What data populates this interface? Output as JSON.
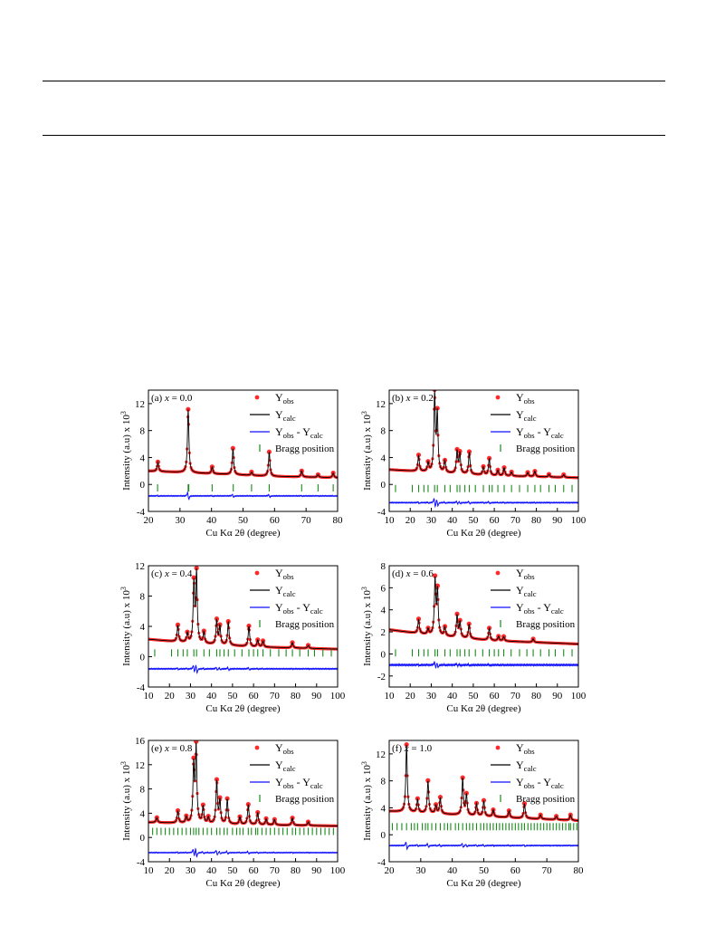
{
  "colors": {
    "obs": "#ff2a2a",
    "calc": "#000000",
    "diff": "#1010ff",
    "bragg": "#1a8a1a",
    "axis": "#000000"
  },
  "legend": {
    "obs": [
      "Y",
      "obs"
    ],
    "calc": [
      "Y",
      "calc"
    ],
    "diff": [
      "Y",
      "obs",
      " - Y",
      "calc"
    ],
    "bragg": "Bragg position"
  },
  "ylabel": [
    "Intensity (a.u) x 10",
    "3"
  ],
  "xlabel": "Cu Kα 2θ (degree)",
  "chart_data": [
    {
      "type": "line",
      "panel": "a",
      "label": [
        "(a) ",
        "x",
        " = 0.0"
      ],
      "xlim": [
        20,
        80
      ],
      "ylim": [
        -4,
        14
      ],
      "xticks": [
        20,
        30,
        40,
        50,
        60,
        70,
        80
      ],
      "yticks": [
        -4,
        0,
        4,
        8,
        12
      ],
      "background": [
        [
          20,
          2.0
        ],
        [
          40,
          1.6
        ],
        [
          60,
          1.2
        ],
        [
          80,
          1.0
        ]
      ],
      "peaks": [
        [
          23.0,
          1.4
        ],
        [
          32.6,
          9.4
        ],
        [
          40.2,
          1.0
        ],
        [
          46.8,
          3.9
        ],
        [
          52.7,
          0.5
        ],
        [
          58.3,
          3.6
        ],
        [
          68.6,
          0.9
        ],
        [
          73.8,
          0.4
        ],
        [
          78.6,
          0.7
        ]
      ],
      "bragg_y": -0.5,
      "bragg": [
        22.9,
        32.6,
        32.8,
        40.2,
        46.9,
        52.7,
        58.3,
        68.6,
        73.8,
        78.6
      ],
      "diff_y": -1.7
    },
    {
      "type": "line",
      "panel": "b",
      "label": [
        "(b) ",
        "x",
        " = 0.2"
      ],
      "xlim": [
        10,
        100
      ],
      "ylim": [
        -4,
        14
      ],
      "xticks": [
        10,
        20,
        30,
        40,
        50,
        60,
        70,
        80,
        90,
        100
      ],
      "yticks": [
        -4,
        0,
        4,
        8,
        12
      ],
      "background": [
        [
          10,
          2.2
        ],
        [
          30,
          1.8
        ],
        [
          60,
          1.3
        ],
        [
          100,
          1.0
        ]
      ],
      "peaks": [
        [
          24.0,
          2.4
        ],
        [
          28.5,
          1.3
        ],
        [
          31.6,
          11.5
        ],
        [
          32.9,
          8.5
        ],
        [
          36.5,
          1.7
        ],
        [
          42.3,
          3.3
        ],
        [
          43.6,
          3.0
        ],
        [
          48.1,
          3.3
        ],
        [
          54.8,
          1.2
        ],
        [
          57.6,
          2.5
        ],
        [
          61.7,
          0.8
        ],
        [
          64.7,
          1.2
        ],
        [
          68.2,
          0.6
        ],
        [
          75.9,
          0.6
        ],
        [
          79.3,
          0.8
        ],
        [
          86.0,
          0.4
        ],
        [
          93.0,
          0.4
        ]
      ],
      "bragg_y": -0.6,
      "bragg": [
        13,
        21,
        24,
        26.5,
        28.5,
        31.6,
        32.9,
        36.5,
        39,
        42.3,
        43.6,
        46,
        48.1,
        51,
        54.8,
        57.6,
        59,
        61.7,
        64.7,
        68.2,
        72,
        75.9,
        79.3,
        82,
        86,
        89,
        93,
        97
      ],
      "diff_y": -2.7
    },
    {
      "type": "line",
      "panel": "c",
      "label": [
        "(c) ",
        "x",
        " = 0.4"
      ],
      "xlim": [
        10,
        100
      ],
      "ylim": [
        -4,
        12
      ],
      "xticks": [
        10,
        20,
        30,
        40,
        50,
        60,
        70,
        80,
        90,
        100
      ],
      "yticks": [
        -4,
        0,
        4,
        8,
        12
      ],
      "background": [
        [
          10,
          2.3
        ],
        [
          30,
          1.8
        ],
        [
          60,
          1.3
        ],
        [
          100,
          1.0
        ]
      ],
      "peaks": [
        [
          24.0,
          2.2
        ],
        [
          28.5,
          1.2
        ],
        [
          31.6,
          7.8
        ],
        [
          32.9,
          9.2
        ],
        [
          36.4,
          1.5
        ],
        [
          42.5,
          3.2
        ],
        [
          44.0,
          2.4
        ],
        [
          48.0,
          3.1
        ],
        [
          57.8,
          2.7
        ],
        [
          62.0,
          0.9
        ],
        [
          64.5,
          0.8
        ],
        [
          78.5,
          0.7
        ],
        [
          86.0,
          0.4
        ]
      ],
      "bragg_y": 0.5,
      "bragg": [
        13,
        21,
        24,
        26.5,
        28.5,
        31.6,
        32.9,
        36.4,
        39,
        42.5,
        44,
        46,
        48,
        51,
        54.5,
        57.8,
        60,
        62,
        64.5,
        68,
        72,
        75.5,
        78.5,
        82,
        86,
        89,
        93,
        97
      ],
      "diff_y": -1.6
    },
    {
      "type": "line",
      "panel": "d",
      "label": [
        "(d) ",
        "x",
        " = 0.6"
      ],
      "xlim": [
        10,
        100
      ],
      "ylim": [
        -3,
        8
      ],
      "xticks": [
        10,
        20,
        30,
        40,
        50,
        60,
        70,
        80,
        90,
        100
      ],
      "yticks": [
        -2,
        0,
        2,
        4,
        6,
        8
      ],
      "background": [
        [
          10,
          2.2
        ],
        [
          30,
          1.7
        ],
        [
          60,
          1.2
        ],
        [
          100,
          0.9
        ]
      ],
      "peaks": [
        [
          24.0,
          1.3
        ],
        [
          28.5,
          0.5
        ],
        [
          31.8,
          5.0
        ],
        [
          33.0,
          4.0
        ],
        [
          36.5,
          0.8
        ],
        [
          42.3,
          2.0
        ],
        [
          43.7,
          1.4
        ],
        [
          48.0,
          1.3
        ],
        [
          57.6,
          1.1
        ],
        [
          62.0,
          0.4
        ],
        [
          64.5,
          0.4
        ],
        [
          78.5,
          0.3
        ]
      ],
      "bragg_y": 0.1,
      "bragg": [
        13,
        21,
        24,
        26.5,
        28.5,
        31.8,
        33,
        36.5,
        39,
        42.3,
        43.7,
        46,
        48,
        51,
        54.5,
        57.6,
        60,
        62,
        64.5,
        68,
        72,
        75.5,
        78.5,
        82,
        86,
        89,
        93,
        97
      ],
      "diff_y": -1.0
    },
    {
      "type": "line",
      "panel": "e",
      "label": [
        "(e) ",
        "x",
        " = 0.8"
      ],
      "xlim": [
        10,
        100
      ],
      "ylim": [
        -4,
        16
      ],
      "xticks": [
        10,
        20,
        30,
        40,
        50,
        60,
        70,
        80,
        90,
        100
      ],
      "yticks": [
        -4,
        0,
        4,
        8,
        12,
        16
      ],
      "background": [
        [
          10,
          2.5
        ],
        [
          30,
          2.3
        ],
        [
          60,
          2.1
        ],
        [
          100,
          1.9
        ]
      ],
      "peaks": [
        [
          14.0,
          0.8
        ],
        [
          24.0,
          2.0
        ],
        [
          28.0,
          1.0
        ],
        [
          31.5,
          9.5
        ],
        [
          32.7,
          12.5
        ],
        [
          36.0,
          2.8
        ],
        [
          38.5,
          1.0
        ],
        [
          42.5,
          7.0
        ],
        [
          44.0,
          3.8
        ],
        [
          47.5,
          4.1
        ],
        [
          53.5,
          1.2
        ],
        [
          57.5,
          3.3
        ],
        [
          62.0,
          2.0
        ],
        [
          66.0,
          1.0
        ],
        [
          70.0,
          0.9
        ],
        [
          78.5,
          1.2
        ],
        [
          86.0,
          0.6
        ]
      ],
      "bragg_y": 1.0,
      "bragg": [
        12,
        14,
        16,
        18,
        20,
        22,
        24,
        26,
        28,
        30,
        31.5,
        32.7,
        34,
        36,
        38,
        40,
        42.5,
        44,
        46,
        47.5,
        50,
        52,
        53.5,
        55,
        57.5,
        59,
        61,
        62,
        64,
        66,
        68,
        70,
        72,
        74,
        76,
        78.5,
        80,
        82,
        84,
        86,
        88,
        90,
        92,
        94,
        96,
        98
      ],
      "diff_y": -2.5
    },
    {
      "type": "line",
      "panel": "f",
      "label": [
        "(f) ",
        "x",
        " = 1.0"
      ],
      "xlim": [
        20,
        80
      ],
      "ylim": [
        -4,
        14
      ],
      "xticks": [
        20,
        30,
        40,
        50,
        60,
        70,
        80
      ],
      "yticks": [
        -4,
        0,
        4,
        8,
        12
      ],
      "background": [
        [
          20,
          3.5
        ],
        [
          40,
          3.0
        ],
        [
          60,
          2.5
        ],
        [
          80,
          2.1
        ]
      ],
      "peaks": [
        [
          25.5,
          10.0
        ],
        [
          29.0,
          2.0
        ],
        [
          32.3,
          4.8
        ],
        [
          34.8,
          1.2
        ],
        [
          36.2,
          2.4
        ],
        [
          43.3,
          5.4
        ],
        [
          44.5,
          3.0
        ],
        [
          47.7,
          1.8
        ],
        [
          50.0,
          2.3
        ],
        [
          53.0,
          1.0
        ],
        [
          58.0,
          1.0
        ],
        [
          62.9,
          2.2
        ],
        [
          68.0,
          0.6
        ],
        [
          73.0,
          0.5
        ],
        [
          77.5,
          0.8
        ]
      ],
      "bragg_y": 1.2,
      "bragg": [
        21,
        22.5,
        24,
        25.5,
        27,
        28,
        29,
        30.5,
        31.5,
        32.3,
        33.5,
        34.8,
        36.2,
        37.5,
        38.5,
        39.5,
        41,
        42,
        43.3,
        44.5,
        45.5,
        46.5,
        47.7,
        49,
        50,
        51,
        52,
        53,
        54,
        55,
        56,
        57,
        58,
        59,
        60,
        61,
        62,
        62.9,
        64,
        65,
        66,
        67,
        68,
        69,
        70,
        71,
        72,
        73,
        74,
        75,
        76,
        77,
        77.5,
        78.5,
        79.5
      ],
      "diff_y": -1.6
    }
  ]
}
